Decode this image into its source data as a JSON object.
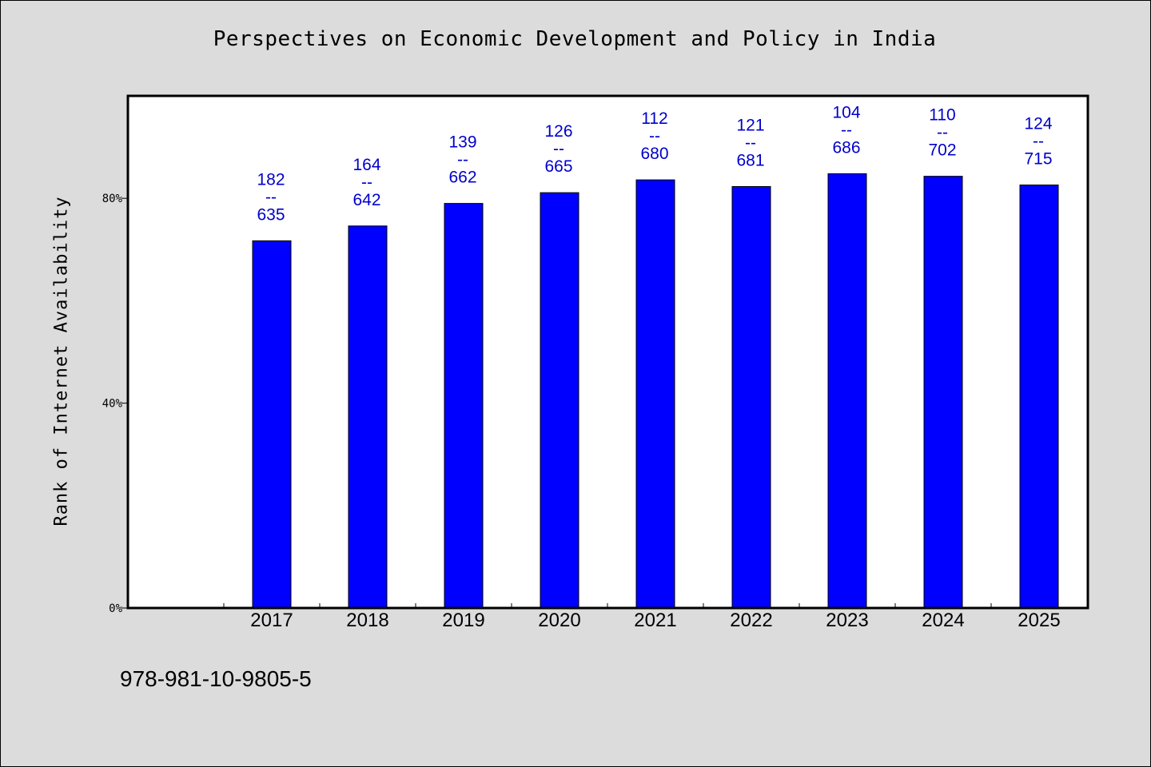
{
  "page": {
    "title": "Perspectives on Economic Development and Policy in India",
    "footer_text": "978-981-10-9805-5"
  },
  "colors": {
    "background": "#dcdcdc",
    "plot_background": "#ffffff",
    "bar_fill": "#0000ff",
    "label_color": "#0000cc"
  },
  "chart_data": {
    "type": "bar",
    "title": "Perspectives on Economic Development and Policy in India",
    "xlabel": "",
    "ylabel": "Rank of Internet Availability",
    "ylim": [
      0,
      100
    ],
    "y_ticks": [
      {
        "value": 0,
        "label": "0%"
      },
      {
        "value": 40,
        "label": "40%"
      },
      {
        "value": 80,
        "label": "80%"
      }
    ],
    "categories": [
      "2017",
      "2018",
      "2019",
      "2020",
      "2021",
      "2022",
      "2023",
      "2024",
      "2025"
    ],
    "values": [
      71.7,
      74.6,
      79.0,
      81.1,
      83.6,
      82.3,
      84.8,
      84.3,
      82.6
    ],
    "data_labels": [
      {
        "top": "182",
        "sep": "--",
        "bottom": "635"
      },
      {
        "top": "164",
        "sep": "--",
        "bottom": "642"
      },
      {
        "top": "139",
        "sep": "--",
        "bottom": "662"
      },
      {
        "top": "126",
        "sep": "--",
        "bottom": "665"
      },
      {
        "top": "112",
        "sep": "--",
        "bottom": "680"
      },
      {
        "top": "121",
        "sep": "--",
        "bottom": "681"
      },
      {
        "top": "104",
        "sep": "--",
        "bottom": "686"
      },
      {
        "top": "110",
        "sep": "--",
        "bottom": "702"
      },
      {
        "top": "124",
        "sep": "--",
        "bottom": "715"
      }
    ],
    "grid": false,
    "legend": "none"
  }
}
